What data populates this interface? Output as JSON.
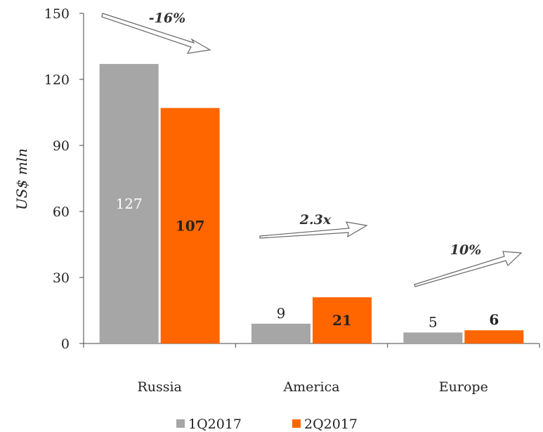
{
  "chart_data": {
    "type": "bar",
    "categories": [
      "Russia",
      "America",
      "Europe"
    ],
    "series": [
      {
        "name": "1Q2017",
        "values": [
          127,
          9,
          5
        ],
        "color": "#a6a6a6",
        "label_color": "#ffffff",
        "label_bold": false
      },
      {
        "name": "2Q2017",
        "values": [
          107,
          21,
          6
        ],
        "color": "#ff6600",
        "label_color": "#222222",
        "label_bold": true
      }
    ],
    "value_labels": [
      [
        "127",
        "9",
        "5"
      ],
      [
        "107",
        "21",
        "6"
      ]
    ],
    "ylabel": "US$ mln",
    "ylim": [
      0,
      150
    ],
    "yticks": [
      "0",
      "30",
      "60",
      "90",
      "120",
      "150"
    ],
    "grid": false,
    "legend": {
      "placement": "bottom",
      "items": [
        "1Q2017",
        "2Q2017"
      ]
    },
    "annotations": [
      {
        "text": "-16%",
        "category": "Russia"
      },
      {
        "text": "2.3x",
        "category": "America"
      },
      {
        "text": "10%",
        "category": "Europe"
      }
    ]
  }
}
